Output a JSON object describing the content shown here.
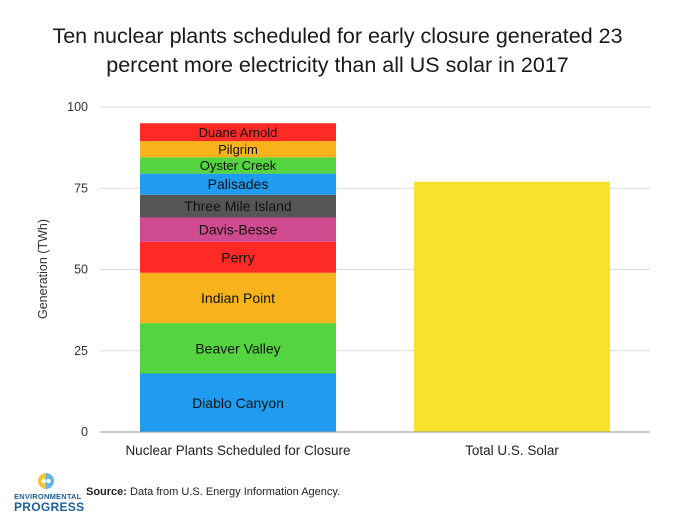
{
  "title_lines": [
    "Ten nuclear plants scheduled for early closure generated 23",
    "percent more electricity than all US solar in 2017"
  ],
  "footer": {
    "source_label": "Source:",
    "source_text": " Data from U.S. Energy Information Agency.",
    "logo_line1": "ENVIRONMENTAL",
    "logo_line2": "PROGRESS",
    "logo_icon": "split-circle-logo-icon"
  },
  "chart_data": {
    "type": "bar",
    "stacked": true,
    "ylabel": "Generation (TWh)",
    "ylim": [
      0,
      100
    ],
    "yticks": [
      0,
      25,
      50,
      75,
      100
    ],
    "grid": true,
    "legend": "labels inside bar segments",
    "categories": [
      "Nuclear Plants Scheduled for Closure",
      "Total U.S. Solar"
    ],
    "stacks": [
      {
        "category": "Nuclear Plants Scheduled for Closure",
        "segments": [
          {
            "name": "Diablo Canyon",
            "value": 18,
            "color": "#1f9cf0"
          },
          {
            "name": "Beaver Valley",
            "value": 15.5,
            "color": "#54d43e"
          },
          {
            "name": "Indian Point",
            "value": 15.5,
            "color": "#f7b21c"
          },
          {
            "name": "Perry",
            "value": 9.5,
            "color": "#ff2a26"
          },
          {
            "name": "Davis-Besse",
            "value": 7.5,
            "color": "#cf4a8e"
          },
          {
            "name": "Three Mile Island",
            "value": 7,
            "color": "#555555"
          },
          {
            "name": "Palisades",
            "value": 6.5,
            "color": "#1f9cf0"
          },
          {
            "name": "Oyster Creek",
            "value": 5,
            "color": "#54d43e"
          },
          {
            "name": "Pilgrim",
            "value": 5,
            "color": "#f7b21c"
          },
          {
            "name": "Duane Arnold",
            "value": 5.5,
            "color": "#ff2a26"
          }
        ]
      },
      {
        "category": "Total U.S. Solar",
        "segments": [
          {
            "name": "",
            "value": 77,
            "color": "#f7e22c"
          }
        ]
      }
    ]
  }
}
